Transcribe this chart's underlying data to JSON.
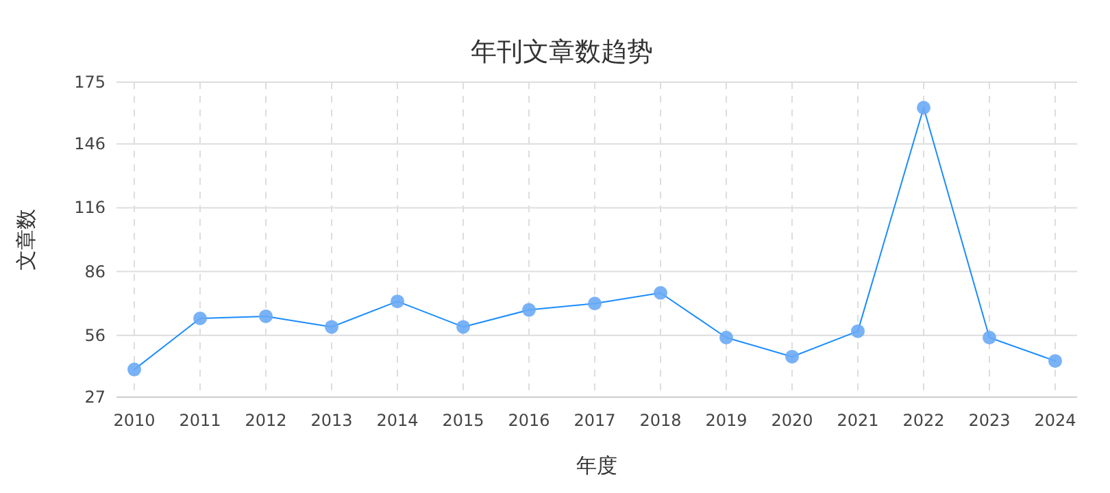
{
  "chart_data": {
    "type": "line",
    "title": "年刊文章数趋势",
    "xlabel": "年度",
    "ylabel": "文章数",
    "categories": [
      "2010",
      "2011",
      "2012",
      "2013",
      "2014",
      "2015",
      "2016",
      "2017",
      "2018",
      "2019",
      "2020",
      "2021",
      "2022",
      "2023",
      "2024"
    ],
    "series": [
      {
        "color": "#1a8cff",
        "values": [
          40,
          64,
          65,
          60,
          72,
          60,
          68,
          71,
          76,
          55,
          46,
          58,
          163,
          55,
          44
        ]
      }
    ],
    "ylim": [
      27,
      175
    ],
    "yticks": [
      27,
      56,
      86,
      116,
      146,
      175
    ],
    "grid": true,
    "marker": "circle",
    "line_style": "solid"
  }
}
